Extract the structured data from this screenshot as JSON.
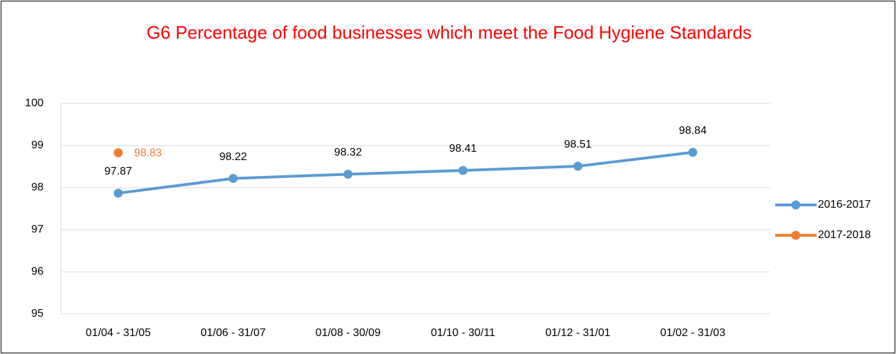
{
  "chart_data": {
    "type": "line",
    "title": "G6 Percentage of food businesses which meet the Food Hygiene Standards",
    "categories": [
      "01/04 - 31/05",
      "01/06 - 31/07",
      "01/08 - 30/09",
      "01/10 - 30/11",
      "01/12 - 31/01",
      "01/02 - 31/03"
    ],
    "series": [
      {
        "name": "2016-2017",
        "color": "#5b9bd5",
        "values": [
          97.87,
          98.22,
          98.32,
          98.41,
          98.51,
          98.84
        ]
      },
      {
        "name": "2017-2018",
        "color": "#ed7d31",
        "values": [
          98.83,
          null,
          null,
          null,
          null,
          null
        ]
      }
    ],
    "ylim": [
      95,
      100
    ],
    "yticks": [
      95,
      96,
      97,
      98,
      99,
      100
    ],
    "grid": true,
    "legend": "right"
  }
}
